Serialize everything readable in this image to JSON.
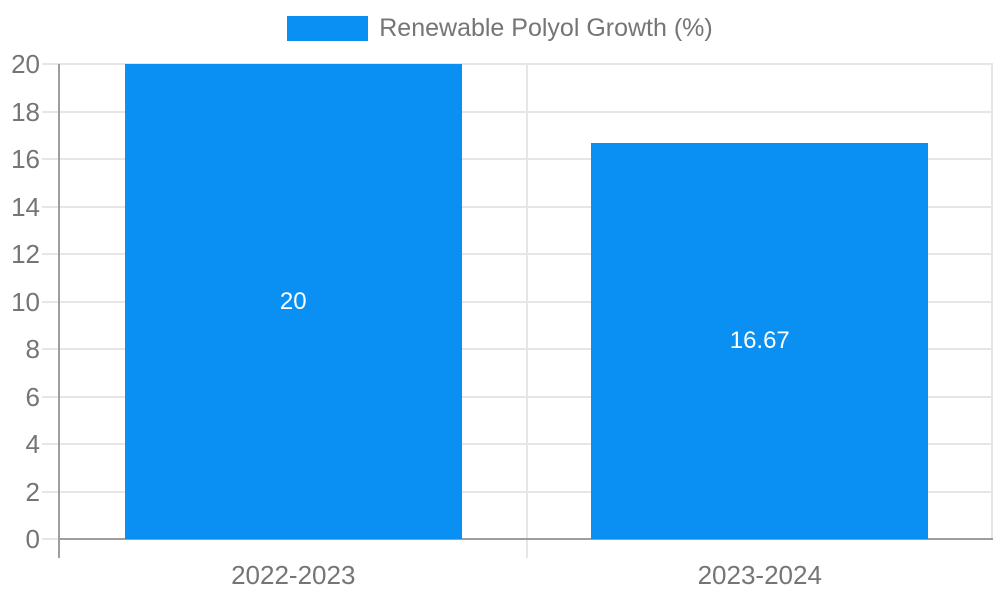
{
  "chart_data": {
    "type": "bar",
    "title": "",
    "legend_label": "Renewable Polyol Growth (%)",
    "legend_position": "top",
    "categories": [
      "2022-2023",
      "2023-2024"
    ],
    "series": [
      {
        "name": "Renewable Polyol Growth (%)",
        "values": [
          20,
          16.67
        ]
      }
    ],
    "values": [
      20,
      16.67
    ],
    "bar_labels": [
      "20",
      "16.67"
    ],
    "xlabel": "",
    "ylabel": "",
    "ylim": [
      0,
      20
    ],
    "yticks": [
      0,
      2,
      4,
      6,
      8,
      10,
      12,
      14,
      16,
      18,
      20
    ],
    "grid": true,
    "colors": {
      "bar": "#0a8ff2",
      "axis_text": "#757575",
      "bar_label_text": "#ffffff",
      "gridline": "#e6e6e6",
      "axis_line": "#9e9e9e",
      "background": "#ffffff"
    }
  }
}
